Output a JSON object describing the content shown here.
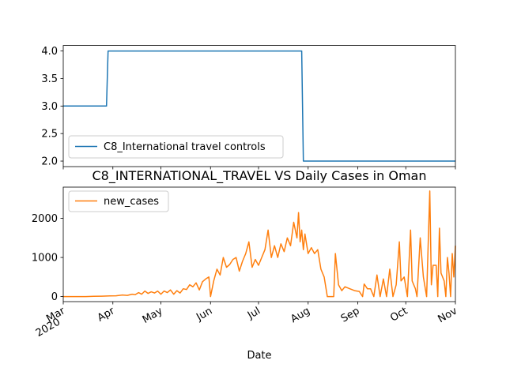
{
  "chart_data": [
    {
      "type": "line",
      "title": "",
      "xlabel": "",
      "ylabel": "",
      "x_start": "2020-03-01",
      "x_end": "2020-11-01",
      "ylim": [
        1.9,
        4.1
      ],
      "yticks": [
        "2.0",
        "2.5",
        "3.0",
        "3.5",
        "4.0"
      ],
      "legend": {
        "placement": "lower-left",
        "entries": [
          "C8_International travel controls"
        ]
      },
      "series": [
        {
          "name": "C8_International travel controls",
          "color": "#1f77b4",
          "points": [
            [
              "2020-03-01",
              3
            ],
            [
              "2020-03-28",
              3
            ],
            [
              "2020-03-29",
              4
            ],
            [
              "2020-07-28",
              4
            ],
            [
              "2020-07-29",
              2
            ],
            [
              "2020-11-01",
              2
            ]
          ]
        }
      ]
    },
    {
      "type": "line",
      "title": "C8_INTERNATIONAL_TRAVEL VS Daily Cases in Oman",
      "xlabel": "Date",
      "ylabel": "",
      "x_start": "2020-03-01",
      "x_end": "2020-11-01",
      "ylim": [
        -130,
        2800
      ],
      "yticks": [
        "0",
        "1000",
        "2000"
      ],
      "xticks": [
        {
          "date": "2020-03-01",
          "label": "Mar",
          "sub": "2020"
        },
        {
          "date": "2020-04-01",
          "label": "Apr"
        },
        {
          "date": "2020-05-01",
          "label": "May"
        },
        {
          "date": "2020-06-01",
          "label": "Jun"
        },
        {
          "date": "2020-07-01",
          "label": "Jul"
        },
        {
          "date": "2020-08-01",
          "label": "Aug"
        },
        {
          "date": "2020-09-01",
          "label": "Sep"
        },
        {
          "date": "2020-10-01",
          "label": "Oct"
        },
        {
          "date": "2020-11-01",
          "label": "Nov"
        }
      ],
      "legend": {
        "placement": "upper-left",
        "entries": [
          "new_cases"
        ]
      },
      "series": [
        {
          "name": "new_cases",
          "color": "#ff7f0e",
          "points": [
            [
              "2020-03-01",
              0
            ],
            [
              "2020-03-10",
              0
            ],
            [
              "2020-03-15",
              0
            ],
            [
              "2020-03-20",
              5
            ],
            [
              "2020-03-25",
              10
            ],
            [
              "2020-03-30",
              15
            ],
            [
              "2020-04-03",
              20
            ],
            [
              "2020-04-07",
              40
            ],
            [
              "2020-04-10",
              30
            ],
            [
              "2020-04-13",
              60
            ],
            [
              "2020-04-15",
              50
            ],
            [
              "2020-04-17",
              100
            ],
            [
              "2020-04-19",
              60
            ],
            [
              "2020-04-21",
              140
            ],
            [
              "2020-04-23",
              80
            ],
            [
              "2020-04-25",
              120
            ],
            [
              "2020-04-27",
              90
            ],
            [
              "2020-04-29",
              140
            ],
            [
              "2020-05-01",
              60
            ],
            [
              "2020-05-03",
              140
            ],
            [
              "2020-05-05",
              100
            ],
            [
              "2020-05-07",
              170
            ],
            [
              "2020-05-09",
              60
            ],
            [
              "2020-05-11",
              150
            ],
            [
              "2020-05-13",
              90
            ],
            [
              "2020-05-15",
              200
            ],
            [
              "2020-05-17",
              180
            ],
            [
              "2020-05-19",
              300
            ],
            [
              "2020-05-21",
              250
            ],
            [
              "2020-05-23",
              350
            ],
            [
              "2020-05-25",
              170
            ],
            [
              "2020-05-27",
              380
            ],
            [
              "2020-05-29",
              450
            ],
            [
              "2020-05-31",
              500
            ],
            [
              "2020-06-01",
              0
            ],
            [
              "2020-06-03",
              400
            ],
            [
              "2020-06-05",
              700
            ],
            [
              "2020-06-07",
              550
            ],
            [
              "2020-06-09",
              1000
            ],
            [
              "2020-06-11",
              750
            ],
            [
              "2020-06-13",
              820
            ],
            [
              "2020-06-15",
              950
            ],
            [
              "2020-06-17",
              1000
            ],
            [
              "2020-06-19",
              650
            ],
            [
              "2020-06-21",
              900
            ],
            [
              "2020-06-23",
              1100
            ],
            [
              "2020-06-25",
              1400
            ],
            [
              "2020-06-27",
              750
            ],
            [
              "2020-06-29",
              950
            ],
            [
              "2020-07-01",
              800
            ],
            [
              "2020-07-03",
              1000
            ],
            [
              "2020-07-05",
              1200
            ],
            [
              "2020-07-07",
              1700
            ],
            [
              "2020-07-09",
              1000
            ],
            [
              "2020-07-11",
              1300
            ],
            [
              "2020-07-13",
              1000
            ],
            [
              "2020-07-15",
              1350
            ],
            [
              "2020-07-17",
              1150
            ],
            [
              "2020-07-19",
              1500
            ],
            [
              "2020-07-21",
              1300
            ],
            [
              "2020-07-23",
              1900
            ],
            [
              "2020-07-25",
              1500
            ],
            [
              "2020-07-26",
              2150
            ],
            [
              "2020-07-27",
              1400
            ],
            [
              "2020-07-28",
              1700
            ],
            [
              "2020-07-29",
              1200
            ],
            [
              "2020-07-30",
              1600
            ],
            [
              "2020-08-01",
              1100
            ],
            [
              "2020-08-03",
              1250
            ],
            [
              "2020-08-05",
              1100
            ],
            [
              "2020-08-07",
              1200
            ],
            [
              "2020-08-09",
              700
            ],
            [
              "2020-08-11",
              500
            ],
            [
              "2020-08-13",
              0
            ],
            [
              "2020-08-15",
              0
            ],
            [
              "2020-08-17",
              0
            ],
            [
              "2020-08-18",
              1100
            ],
            [
              "2020-08-20",
              300
            ],
            [
              "2020-08-22",
              150
            ],
            [
              "2020-08-24",
              250
            ],
            [
              "2020-08-27",
              200
            ],
            [
              "2020-08-30",
              150
            ],
            [
              "2020-09-02",
              130
            ],
            [
              "2020-09-04",
              0
            ],
            [
              "2020-09-05",
              320
            ],
            [
              "2020-09-07",
              200
            ],
            [
              "2020-09-09",
              200
            ],
            [
              "2020-09-11",
              0
            ],
            [
              "2020-09-13",
              550
            ],
            [
              "2020-09-15",
              0
            ],
            [
              "2020-09-17",
              450
            ],
            [
              "2020-09-19",
              0
            ],
            [
              "2020-09-21",
              700
            ],
            [
              "2020-09-23",
              0
            ],
            [
              "2020-09-25",
              300
            ],
            [
              "2020-09-27",
              1400
            ],
            [
              "2020-09-28",
              400
            ],
            [
              "2020-09-30",
              500
            ],
            [
              "2020-10-02",
              0
            ],
            [
              "2020-10-04",
              1700
            ],
            [
              "2020-10-05",
              400
            ],
            [
              "2020-10-07",
              200
            ],
            [
              "2020-10-08",
              0
            ],
            [
              "2020-10-10",
              1500
            ],
            [
              "2020-10-12",
              500
            ],
            [
              "2020-10-14",
              0
            ],
            [
              "2020-10-16",
              2700
            ],
            [
              "2020-10-17",
              300
            ],
            [
              "2020-10-18",
              800
            ],
            [
              "2020-10-20",
              800
            ],
            [
              "2020-10-21",
              0
            ],
            [
              "2020-10-22",
              1750
            ],
            [
              "2020-10-23",
              600
            ],
            [
              "2020-10-25",
              400
            ],
            [
              "2020-10-26",
              0
            ],
            [
              "2020-10-27",
              1000
            ],
            [
              "2020-10-28",
              600
            ],
            [
              "2020-10-29",
              0
            ],
            [
              "2020-10-30",
              1100
            ],
            [
              "2020-10-31",
              500
            ],
            [
              "2020-11-01",
              1300
            ]
          ]
        }
      ]
    }
  ]
}
